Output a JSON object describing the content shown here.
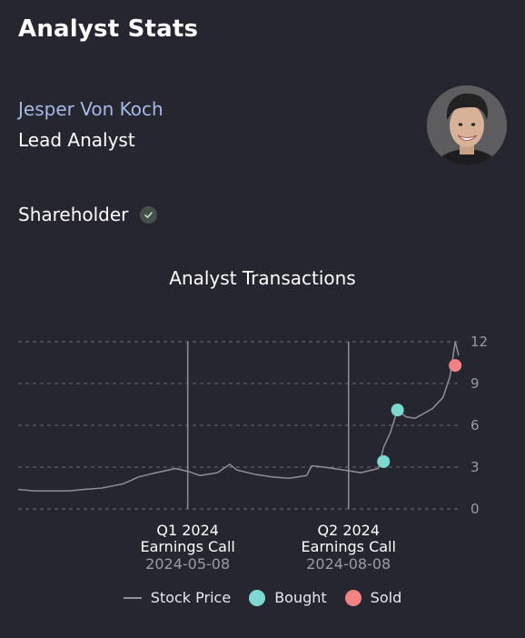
{
  "header": {
    "title": "Analyst Stats"
  },
  "analyst": {
    "name": "Jesper Von Koch",
    "role": "Lead Analyst",
    "shareholder_label": "Shareholder",
    "shareholder_verified": true
  },
  "colors": {
    "accent_name": "#a5b8e8",
    "bought": "#7dd8d0",
    "sold": "#f08484",
    "price_line": "#8e8e96",
    "grid": "#6a6a72"
  },
  "chart_data": {
    "type": "line",
    "title": "Analyst Transactions",
    "ylim": [
      0,
      12
    ],
    "yticks": [
      "0",
      "3",
      "6",
      "9",
      "12"
    ],
    "grid": "horizontal dashed",
    "legend_position": "bottom-center",
    "x_domain": [
      "2024-02-01",
      "2024-10-10"
    ],
    "series": [
      {
        "name": "Stock Price",
        "x": [
          "2024-02-01",
          "2024-02-10",
          "2024-02-20",
          "2024-03-01",
          "2024-03-10",
          "2024-03-20",
          "2024-04-01",
          "2024-04-10",
          "2024-04-20",
          "2024-05-01",
          "2024-05-08",
          "2024-05-15",
          "2024-05-25",
          "2024-06-01",
          "2024-06-05",
          "2024-06-15",
          "2024-06-25",
          "2024-07-05",
          "2024-07-15",
          "2024-07-18",
          "2024-07-25",
          "2024-08-05",
          "2024-08-15",
          "2024-08-25",
          "2024-08-28",
          "2024-09-01",
          "2024-09-05",
          "2024-09-10",
          "2024-09-15",
          "2024-09-25",
          "2024-10-01",
          "2024-10-05",
          "2024-10-08",
          "2024-10-10"
        ],
        "values": [
          1.4,
          1.3,
          1.3,
          1.3,
          1.4,
          1.5,
          1.8,
          2.3,
          2.6,
          2.9,
          2.7,
          2.4,
          2.6,
          3.2,
          2.8,
          2.5,
          2.3,
          2.2,
          2.4,
          3.1,
          3.0,
          2.8,
          2.6,
          2.9,
          4.4,
          5.5,
          7.1,
          6.6,
          6.5,
          7.2,
          8.0,
          9.5,
          12.0,
          11.0
        ]
      }
    ],
    "transactions": [
      {
        "type": "Bought",
        "date": "2024-08-28",
        "value": 3.4
      },
      {
        "type": "Bought",
        "date": "2024-09-05",
        "value": 7.1
      },
      {
        "type": "Sold",
        "date": "2024-10-08",
        "value": 10.3
      }
    ],
    "events": [
      {
        "line1": "Q1 2024",
        "line2": "Earnings Call",
        "date": "2024-05-08"
      },
      {
        "line1": "Q2 2024",
        "line2": "Earnings Call",
        "date": "2024-08-08"
      }
    ]
  },
  "legend": {
    "stock_price": "Stock Price",
    "bought": "Bought",
    "sold": "Sold"
  }
}
